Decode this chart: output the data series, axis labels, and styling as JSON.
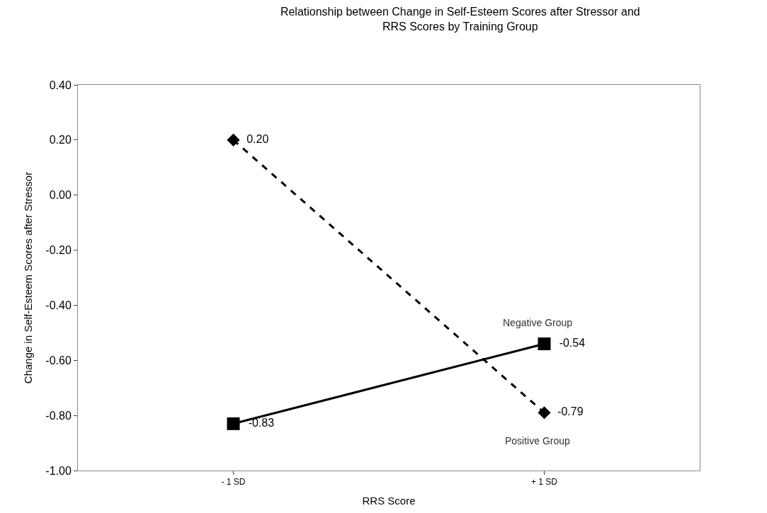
{
  "chart_data": {
    "type": "line",
    "title": "Relationship between Change in Self-Esteem Scores after Stressor and RRS Scores by Training Group",
    "xlabel": "RRS Score",
    "ylabel": "Change in Self-Esteem Scores after Stressor",
    "categories": [
      "- 1 SD",
      "+ 1 SD"
    ],
    "series": [
      {
        "name": "Negative Group",
        "color": "#000000",
        "values": [
          -0.83,
          -0.54
        ],
        "value_labels": [
          "-0.83",
          "-0.54"
        ],
        "marker": "square",
        "line_style": "solid"
      },
      {
        "name": "Positive Group",
        "color": "#000000",
        "values": [
          0.2,
          -0.79
        ],
        "value_labels": [
          "0.20",
          "-0.79"
        ],
        "marker": "diamond",
        "line_style": "dashed"
      }
    ],
    "ylim": [
      -1.0,
      0.4
    ],
    "yticks": [
      {
        "value": -1.0,
        "label": "-1.00"
      },
      {
        "value": -0.8,
        "label": "-0.80"
      },
      {
        "value": -0.6,
        "label": "-0.60"
      },
      {
        "value": -0.4,
        "label": "-0.40"
      },
      {
        "value": -0.2,
        "label": "-0.20"
      },
      {
        "value": 0,
        "label": "0.00"
      },
      {
        "value": 0.2,
        "label": "0.20"
      },
      {
        "value": 0.4,
        "label": "0.40"
      }
    ],
    "legend": false
  }
}
